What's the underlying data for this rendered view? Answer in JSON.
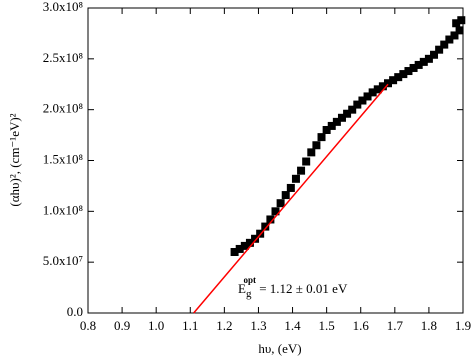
{
  "chart_data": {
    "type": "scatter",
    "x_label": "hυ, (eV)",
    "y_label": "(αhυ)², (cm⁻¹eV)²",
    "annotation": {
      "base": "E",
      "sub": "g",
      "sup": "opt",
      "text": " = 1.12 ± 0.01 eV"
    },
    "xlim": [
      0.8,
      1.9
    ],
    "ylim": [
      0,
      300000000
    ],
    "xticks": [
      0.8,
      0.9,
      {
        "value": 1,
        "label": "1.0"
      },
      1.1,
      1.2,
      1.3,
      1.4,
      1.5,
      1.6,
      1.7,
      1.8,
      1.9
    ],
    "yticks": [
      {
        "value": 0,
        "label": "0.0"
      },
      {
        "value": 50000000,
        "label": "5.0x10⁷"
      },
      {
        "value": 100000000,
        "label": "1.0x10⁸"
      },
      {
        "value": 150000000,
        "label": "1.5x10⁸"
      },
      {
        "value": 200000000,
        "label": "2.0x10⁸"
      },
      {
        "value": 250000000,
        "label": "2.5x10⁸"
      },
      {
        "value": 300000000,
        "label": "3.0x10⁸"
      }
    ],
    "series": [
      {
        "type": "scatter",
        "color": "#000000",
        "x": [
          1.23,
          1.245,
          1.26,
          1.275,
          1.29,
          1.305,
          1.32,
          1.335,
          1.35,
          1.365,
          1.38,
          1.395,
          1.41,
          1.425,
          1.44,
          1.455,
          1.47,
          1.485,
          1.5,
          1.515,
          1.53,
          1.545,
          1.56,
          1.575,
          1.59,
          1.605,
          1.62,
          1.635,
          1.65,
          1.665,
          1.68,
          1.695,
          1.71,
          1.725,
          1.74,
          1.755,
          1.77,
          1.785,
          1.8,
          1.815,
          1.83,
          1.845,
          1.86,
          1.875,
          1.88,
          1.89,
          1.895
        ],
        "values": [
          60000000,
          63000000,
          66000000,
          69000000,
          73000000,
          78000000,
          85000000,
          92000000,
          100000000,
          108000000,
          116000000,
          123000000,
          132000000,
          140000000,
          149000000,
          158000000,
          165000000,
          173000000,
          180000000,
          184000000,
          188000000,
          192000000,
          196000000,
          200000000,
          205000000,
          209000000,
          213000000,
          217000000,
          220000000,
          223000000,
          226000000,
          229000000,
          232000000,
          235000000,
          238000000,
          241000000,
          244000000,
          247000000,
          250000000,
          254000000,
          259000000,
          264000000,
          269000000,
          273000000,
          285000000,
          278000000,
          288000000
        ]
      },
      {
        "type": "line",
        "color": "#ff0000",
        "x": [
          1.11,
          1.68
        ],
        "values": [
          0,
          225000000
        ]
      }
    ]
  }
}
